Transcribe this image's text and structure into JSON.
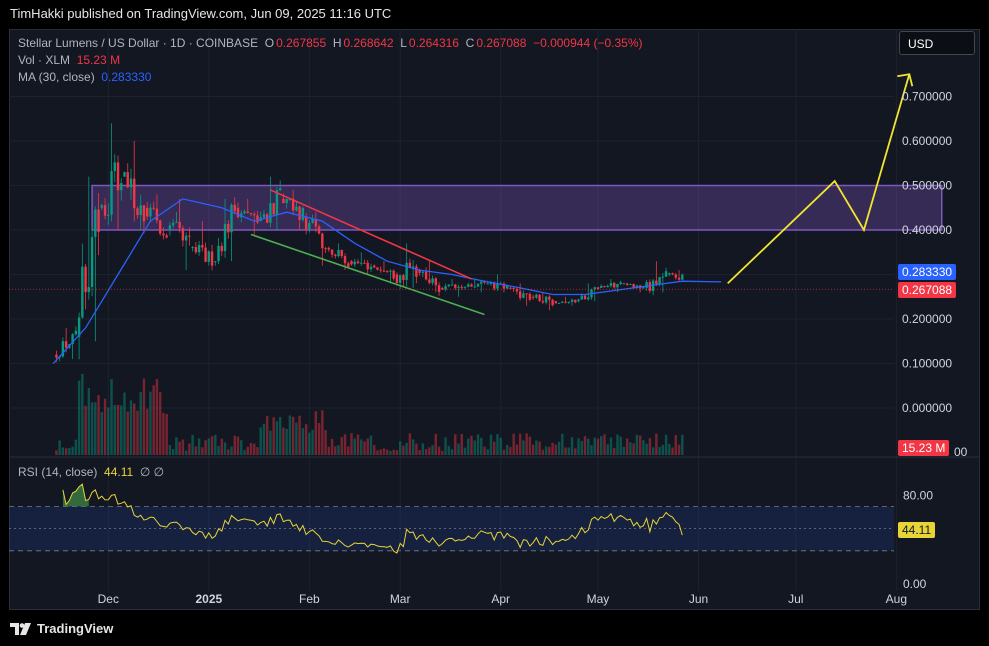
{
  "header": {
    "published": "TimHakki published on TradingView.com, Jun 09, 2025 11:16 UTC"
  },
  "legend": {
    "symbol": "Stellar Lumens / US Dollar · 1D · COINBASE",
    "o_label": "O",
    "o": "0.267855",
    "h_label": "H",
    "h": "0.268642",
    "l_label": "L",
    "l": "0.264316",
    "c_label": "C",
    "c": "0.267088",
    "change": "−0.000944 (−0.35%)",
    "vol_label": "Vol · XLM",
    "vol_value": "15.23 M",
    "ma_label": "MA (30, close)",
    "ma_value": "0.283330"
  },
  "currency_button": "USD",
  "price_axis": {
    "ticks": [
      "0.700000",
      "0.600000",
      "0.500000",
      "0.400000",
      "0.200000",
      "0.100000",
      "0.000000"
    ],
    "ma_tag": "0.283330",
    "close_tag": "0.267088",
    "volume_tag": "15.23 M",
    "clipped_tick": "00"
  },
  "rsi": {
    "label": "RSI (14, close)",
    "value": "44.11",
    "dashes": "∅  ∅",
    "axis": [
      "80.00",
      "0.00"
    ],
    "tag": "44.11"
  },
  "time_axis": [
    "Dec",
    "2025",
    "Feb",
    "Mar",
    "Apr",
    "May",
    "Jun",
    "Jul",
    "Aug"
  ],
  "brand": "TradingView",
  "colors": {
    "up": "#089981",
    "down": "#f23645",
    "ma": "#2962ff",
    "rsi": "#e8d437",
    "zone": "#7e57c2",
    "projection": "#f2e530"
  },
  "chart_data": {
    "type": "candlestick",
    "symbol": "XLM/USD",
    "timeframe": "1D",
    "x_range": [
      "2024-11-14",
      "2025-08-15"
    ],
    "y_range": [
      0.0,
      0.75
    ],
    "ohlc_weekly_approx": [
      {
        "date": "2024-11-15",
        "o": 0.12,
        "h": 0.18,
        "l": 0.11,
        "c": 0.16
      },
      {
        "date": "2024-11-22",
        "o": 0.16,
        "h": 0.52,
        "l": 0.15,
        "c": 0.45
      },
      {
        "date": "2024-11-29",
        "o": 0.45,
        "h": 0.64,
        "l": 0.4,
        "c": 0.52
      },
      {
        "date": "2024-12-06",
        "o": 0.52,
        "h": 0.6,
        "l": 0.4,
        "c": 0.45
      },
      {
        "date": "2024-12-13",
        "o": 0.45,
        "h": 0.48,
        "l": 0.38,
        "c": 0.4
      },
      {
        "date": "2024-12-20",
        "o": 0.4,
        "h": 0.47,
        "l": 0.31,
        "c": 0.36
      },
      {
        "date": "2024-12-27",
        "o": 0.36,
        "h": 0.42,
        "l": 0.32,
        "c": 0.33
      },
      {
        "date": "2025-01-03",
        "o": 0.33,
        "h": 0.47,
        "l": 0.33,
        "c": 0.45
      },
      {
        "date": "2025-01-10",
        "o": 0.45,
        "h": 0.47,
        "l": 0.39,
        "c": 0.42
      },
      {
        "date": "2025-01-17",
        "o": 0.42,
        "h": 0.52,
        "l": 0.4,
        "c": 0.47
      },
      {
        "date": "2025-01-24",
        "o": 0.47,
        "h": 0.49,
        "l": 0.4,
        "c": 0.43
      },
      {
        "date": "2025-01-31",
        "o": 0.43,
        "h": 0.44,
        "l": 0.32,
        "c": 0.36
      },
      {
        "date": "2025-02-07",
        "o": 0.36,
        "h": 0.37,
        "l": 0.31,
        "c": 0.33
      },
      {
        "date": "2025-02-14",
        "o": 0.33,
        "h": 0.35,
        "l": 0.3,
        "c": 0.32
      },
      {
        "date": "2025-02-21",
        "o": 0.32,
        "h": 0.33,
        "l": 0.28,
        "c": 0.3
      },
      {
        "date": "2025-02-28",
        "o": 0.3,
        "h": 0.37,
        "l": 0.27,
        "c": 0.31
      },
      {
        "date": "2025-03-07",
        "o": 0.31,
        "h": 0.33,
        "l": 0.26,
        "c": 0.27
      },
      {
        "date": "2025-03-14",
        "o": 0.27,
        "h": 0.29,
        "l": 0.25,
        "c": 0.27
      },
      {
        "date": "2025-03-21",
        "o": 0.27,
        "h": 0.29,
        "l": 0.26,
        "c": 0.28
      },
      {
        "date": "2025-03-28",
        "o": 0.28,
        "h": 0.3,
        "l": 0.26,
        "c": 0.27
      },
      {
        "date": "2025-04-04",
        "o": 0.27,
        "h": 0.28,
        "l": 0.23,
        "c": 0.25
      },
      {
        "date": "2025-04-11",
        "o": 0.25,
        "h": 0.26,
        "l": 0.22,
        "c": 0.24
      },
      {
        "date": "2025-04-18",
        "o": 0.24,
        "h": 0.25,
        "l": 0.23,
        "c": 0.24
      },
      {
        "date": "2025-04-25",
        "o": 0.24,
        "h": 0.28,
        "l": 0.24,
        "c": 0.27
      },
      {
        "date": "2025-05-02",
        "o": 0.27,
        "h": 0.29,
        "l": 0.26,
        "c": 0.28
      },
      {
        "date": "2025-05-09",
        "o": 0.28,
        "h": 0.28,
        "l": 0.26,
        "c": 0.27
      },
      {
        "date": "2025-05-16",
        "o": 0.27,
        "h": 0.33,
        "l": 0.26,
        "c": 0.3
      },
      {
        "date": "2025-05-23",
        "o": 0.3,
        "h": 0.31,
        "l": 0.28,
        "c": 0.29
      },
      {
        "date": "2025-05-30",
        "o": 0.29,
        "h": 0.29,
        "l": 0.27,
        "c": 0.27
      },
      {
        "date": "2025-06-06",
        "o": 0.27,
        "h": 0.28,
        "l": 0.26,
        "c": 0.267
      }
    ],
    "ma30_approx": [
      {
        "date": "2024-11-14",
        "v": 0.1
      },
      {
        "date": "2024-11-24",
        "v": 0.18
      },
      {
        "date": "2024-12-04",
        "v": 0.3
      },
      {
        "date": "2024-12-14",
        "v": 0.42
      },
      {
        "date": "2024-12-24",
        "v": 0.47
      },
      {
        "date": "2025-01-05",
        "v": 0.45
      },
      {
        "date": "2025-01-15",
        "v": 0.42
      },
      {
        "date": "2025-01-25",
        "v": 0.44
      },
      {
        "date": "2025-02-05",
        "v": 0.42
      },
      {
        "date": "2025-02-15",
        "v": 0.37
      },
      {
        "date": "2025-02-25",
        "v": 0.33
      },
      {
        "date": "2025-03-07",
        "v": 0.31
      },
      {
        "date": "2025-03-17",
        "v": 0.3
      },
      {
        "date": "2025-03-27",
        "v": 0.285
      },
      {
        "date": "2025-04-07",
        "v": 0.27
      },
      {
        "date": "2025-04-17",
        "v": 0.255
      },
      {
        "date": "2025-04-27",
        "v": 0.255
      },
      {
        "date": "2025-05-07",
        "v": 0.265
      },
      {
        "date": "2025-05-17",
        "v": 0.275
      },
      {
        "date": "2025-05-27",
        "v": 0.285
      },
      {
        "date": "2025-06-08",
        "v": 0.2833
      }
    ],
    "zone": {
      "low": 0.4,
      "high": 0.5,
      "from": "2024-11-26",
      "to": "2025-08-15"
    },
    "trendlines": [
      {
        "name": "resistance",
        "color": "red",
        "from": {
          "date": "2025-01-20",
          "price": 0.49
        },
        "to": {
          "date": "2025-03-23",
          "price": 0.29
        }
      },
      {
        "name": "support",
        "color": "green",
        "from": {
          "date": "2025-01-14",
          "price": 0.39
        },
        "to": {
          "date": "2025-03-27",
          "price": 0.21
        }
      }
    ],
    "projection": [
      {
        "date": "2025-06-10",
        "price": 0.28
      },
      {
        "date": "2025-07-13",
        "price": 0.51
      },
      {
        "date": "2025-07-22",
        "price": 0.4
      },
      {
        "date": "2025-08-05",
        "price": 0.75
      }
    ],
    "rsi": {
      "period": 14,
      "last": 44.11,
      "upper": 70,
      "middle": 50,
      "lower": 30
    }
  }
}
